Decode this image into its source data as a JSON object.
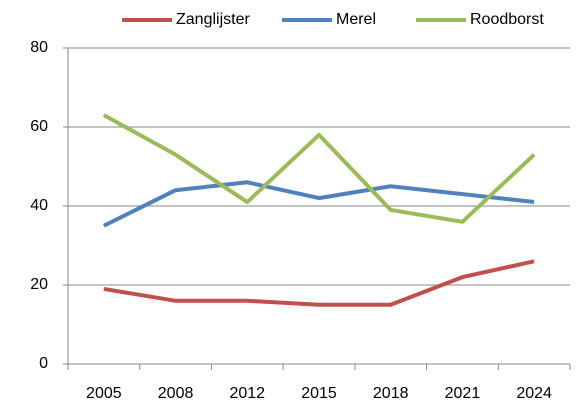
{
  "chart_data": {
    "type": "line",
    "categories": [
      "2005",
      "2008",
      "2012",
      "2015",
      "2018",
      "2021",
      "2024"
    ],
    "series": [
      {
        "name": "Zanglijster",
        "color": "#c0504d",
        "values": [
          19,
          16,
          16,
          15,
          15,
          22,
          26
        ]
      },
      {
        "name": "Merel",
        "color": "#4f81bd",
        "values": [
          35,
          44,
          46,
          42,
          45,
          43,
          41
        ]
      },
      {
        "name": "Roodborst",
        "color": "#9bbb59",
        "values": [
          63,
          53,
          41,
          58,
          39,
          36,
          53
        ]
      }
    ],
    "ylim": [
      0,
      80
    ],
    "yticks": [
      0,
      20,
      40,
      60,
      80
    ],
    "grid": true,
    "legend": "top"
  }
}
